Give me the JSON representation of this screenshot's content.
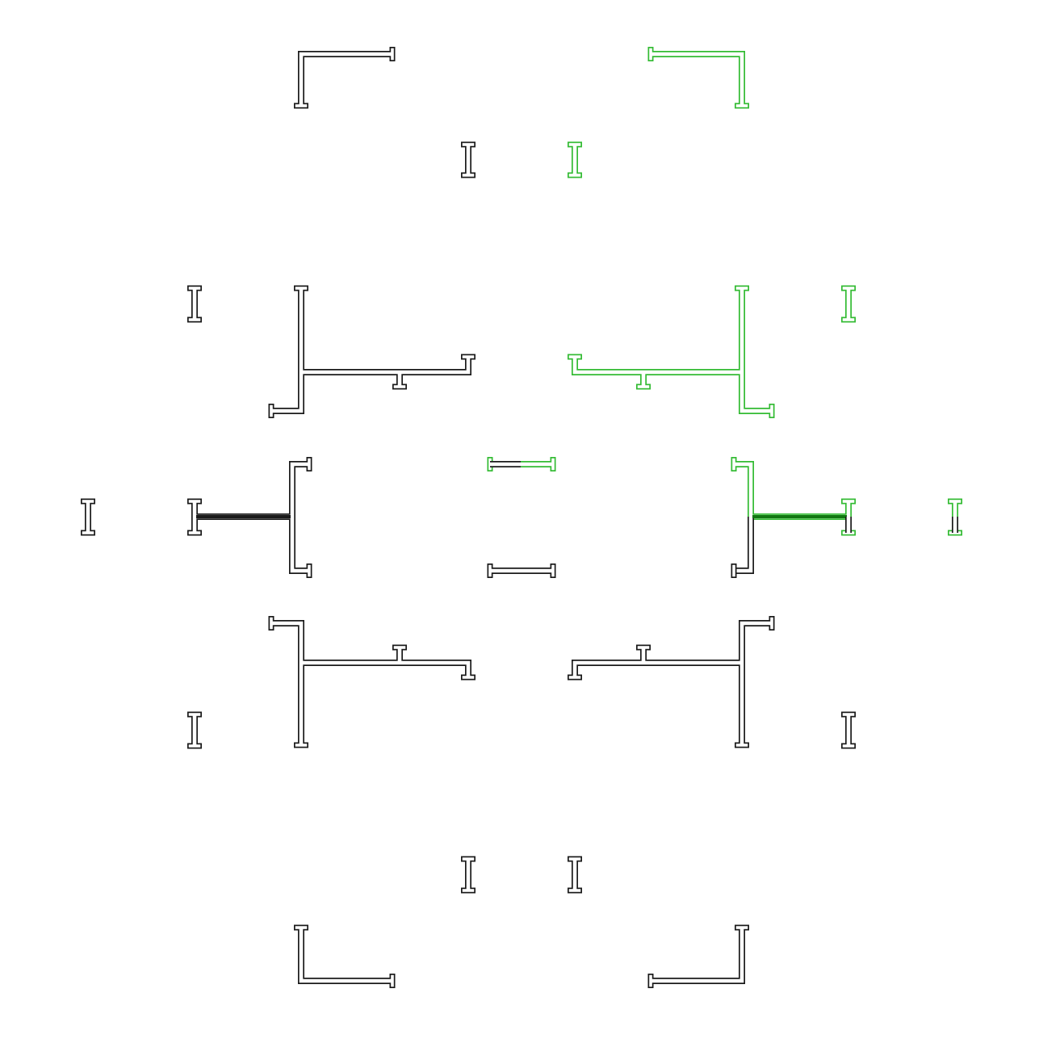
{
  "colors": {
    "background": "#ffffff",
    "outline": "#1a1a1a",
    "highlight": "#33bb33"
  },
  "pieces": [
    {
      "id": "corner-top-left",
      "color": "outline"
    },
    {
      "id": "corner-top-right",
      "color": "highlight"
    },
    {
      "id": "ibeam-top-left",
      "color": "outline"
    },
    {
      "id": "ibeam-top-right",
      "color": "highlight"
    },
    {
      "id": "ibeam-upper-far-left",
      "color": "outline"
    },
    {
      "id": "ibeam-upper-far-right",
      "color": "highlight"
    },
    {
      "id": "tee-upper-left",
      "color": "outline"
    },
    {
      "id": "tee-upper-right",
      "color": "highlight"
    },
    {
      "id": "ibeam-mid-edge-left",
      "color": "outline"
    },
    {
      "id": "bracket-mid-left",
      "color": "outline"
    },
    {
      "id": "link-mid-top",
      "color": "highlight"
    },
    {
      "id": "link-mid-bottom",
      "color": "outline"
    },
    {
      "id": "bracket-mid-right",
      "color": "highlight"
    },
    {
      "id": "ibeam-mid-edge-right",
      "color": "highlight"
    },
    {
      "id": "tee-lower-left",
      "color": "outline"
    },
    {
      "id": "tee-lower-right",
      "color": "outline"
    },
    {
      "id": "ibeam-lower-far-left",
      "color": "outline"
    },
    {
      "id": "ibeam-lower-far-right",
      "color": "outline"
    },
    {
      "id": "ibeam-bottom-left",
      "color": "outline"
    },
    {
      "id": "ibeam-bottom-right",
      "color": "outline"
    },
    {
      "id": "corner-bottom-left",
      "color": "outline"
    },
    {
      "id": "corner-bottom-right",
      "color": "outline"
    }
  ]
}
